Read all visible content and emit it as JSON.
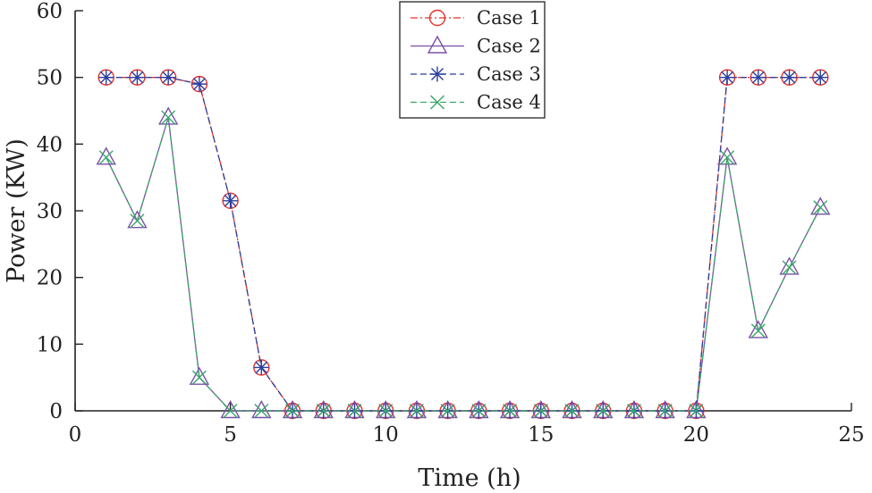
{
  "chart_data": {
    "type": "line",
    "title": "",
    "xlabel": "Time (h)",
    "ylabel": "Power (KW)",
    "xlim": [
      0,
      25
    ],
    "ylim": [
      0,
      60
    ],
    "xticks": [
      0,
      5,
      10,
      15,
      20,
      25
    ],
    "yticks": [
      0,
      10,
      20,
      30,
      40,
      50,
      60
    ],
    "grid": false,
    "legend_position": "top-center",
    "x": [
      1,
      2,
      3,
      4,
      5,
      6,
      7,
      8,
      9,
      10,
      11,
      12,
      13,
      14,
      15,
      16,
      17,
      18,
      19,
      20,
      21,
      22,
      23,
      24
    ],
    "series": [
      {
        "name": "Case 1",
        "color": "#e8312a",
        "dash": "dash-dot",
        "marker": "circle",
        "values": [
          50,
          50,
          50,
          49,
          31.5,
          6.5,
          0,
          0,
          0,
          0,
          0,
          0,
          0,
          0,
          0,
          0,
          0,
          0,
          0,
          0,
          50,
          50,
          50,
          50
        ]
      },
      {
        "name": "Case 2",
        "color": "#7b4fa8",
        "dash": "solid",
        "marker": "triangle",
        "values": [
          38,
          28.5,
          44,
          5,
          0,
          0,
          0,
          0,
          0,
          0,
          0,
          0,
          0,
          0,
          0,
          0,
          0,
          0,
          0,
          0,
          38,
          12,
          21.5,
          30.5
        ]
      },
      {
        "name": "Case 3",
        "color": "#2b3f9e",
        "dash": "dashed",
        "marker": "asterisk",
        "values": [
          50,
          50,
          50,
          49,
          31.5,
          6.5,
          0,
          0,
          0,
          0,
          0,
          0,
          0,
          0,
          0,
          0,
          0,
          0,
          0,
          0,
          50,
          50,
          50,
          50
        ]
      },
      {
        "name": "Case 4",
        "color": "#3aa86b",
        "dash": "dashed",
        "marker": "x",
        "values": [
          38,
          28.5,
          44,
          5,
          0,
          0,
          0,
          0,
          0,
          0,
          0,
          0,
          0,
          0,
          0,
          0,
          0,
          0,
          0,
          0,
          38,
          12,
          21.5,
          30.5
        ]
      }
    ]
  }
}
